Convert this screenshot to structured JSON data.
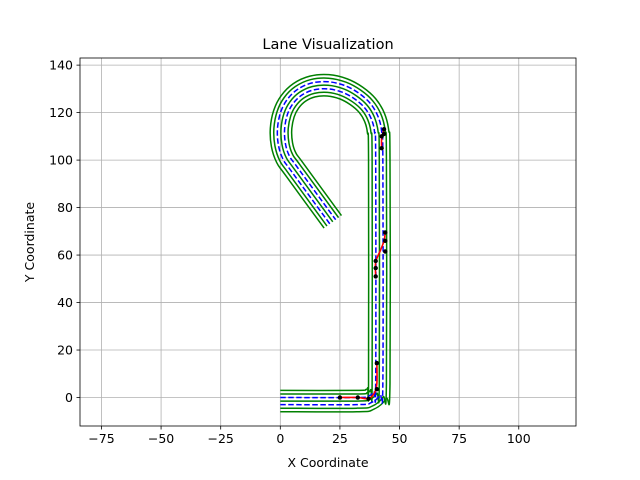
{
  "chart_data": {
    "type": "line",
    "title": "Lane Visualization",
    "xlabel": "X Coordinate",
    "ylabel": "Y Coordinate",
    "xlim": [
      -84,
      124
    ],
    "ylim": [
      -12,
      143
    ],
    "xticks": [
      -75,
      -50,
      -25,
      0,
      25,
      50,
      75,
      100
    ],
    "yticks": [
      0,
      20,
      40,
      60,
      80,
      100,
      120,
      140
    ],
    "grid": true,
    "boundary_color": "#008000",
    "lane_line_color": "#0000ff",
    "path_color": "#ff0000",
    "point_color": "#000000",
    "road": {
      "offsets": [
        -3,
        0,
        3
      ],
      "lane_offsets": [
        -1.5,
        1.5
      ],
      "outer_offsets": [
        -4.5,
        4.5
      ],
      "centerline": [
        [
          0,
          -1.5
        ],
        [
          32,
          -1.5
        ],
        [
          37.5,
          -0.8
        ],
        [
          40.5,
          1.8
        ],
        [
          41.5,
          6
        ],
        [
          41.5,
          100
        ],
        [
          41,
          112
        ],
        [
          39.5,
          118
        ],
        [
          36.5,
          123
        ],
        [
          32,
          127
        ],
        [
          26.5,
          130
        ],
        [
          20,
          131.5
        ],
        [
          13.5,
          131
        ],
        [
          8,
          128.5
        ],
        [
          4,
          124.5
        ],
        [
          1.5,
          119.5
        ],
        [
          0.3,
          113
        ],
        [
          0.7,
          106.5
        ],
        [
          2.5,
          101
        ],
        [
          6,
          96
        ],
        [
          22,
          74
        ]
      ]
    },
    "path_segments": [
      [
        [
          25,
          0
        ],
        [
          32.5,
          0
        ],
        [
          37,
          -0.5
        ],
        [
          39.5,
          2
        ],
        [
          40.5,
          6
        ],
        [
          40.5,
          14.5
        ]
      ],
      [
        [
          40,
          51
        ],
        [
          40,
          57
        ],
        [
          42,
          62
        ],
        [
          43.5,
          66
        ],
        [
          44,
          69.5
        ]
      ],
      [
        [
          42.5,
          105
        ],
        [
          42.5,
          109
        ],
        [
          43.5,
          113
        ]
      ]
    ],
    "points": [
      [
        25,
        0
      ],
      [
        32.5,
        0
      ],
      [
        37,
        -0.5
      ],
      [
        40.5,
        3.5
      ],
      [
        40.5,
        14.5
      ],
      [
        40,
        51
      ],
      [
        40,
        54.5
      ],
      [
        40,
        57.5
      ],
      [
        44,
        61.5
      ],
      [
        44,
        66
      ],
      [
        44,
        69.5
      ],
      [
        42.5,
        105
      ],
      [
        42.5,
        110
      ],
      [
        43.5,
        113
      ],
      [
        43.5,
        111
      ]
    ]
  }
}
